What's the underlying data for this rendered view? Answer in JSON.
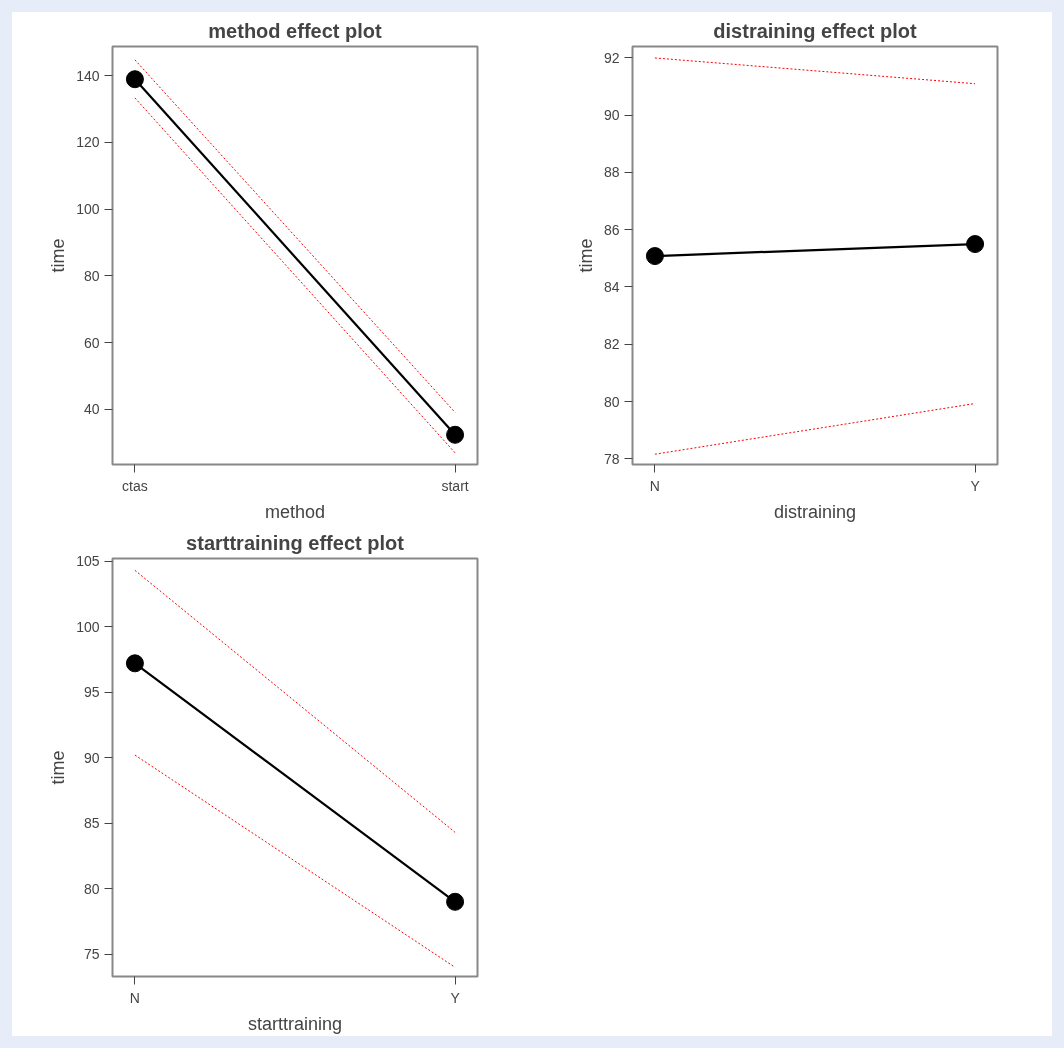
{
  "chart_data": [
    {
      "type": "line",
      "title": "method effect plot",
      "xlabel": "method",
      "ylabel": "time",
      "categories": [
        "ctas",
        "start"
      ],
      "ylim": [
        23.5,
        148.7
      ],
      "yticks": [
        40,
        60,
        80,
        100,
        120,
        140
      ],
      "grid": false,
      "series": [
        {
          "color": "#000000",
          "values": [
            138.9,
            32.4
          ],
          "marker": "circle",
          "line_style": "solid"
        },
        {
          "color": "#ff0000",
          "values": [
            144.7,
            39.1
          ],
          "marker": "none",
          "line_style": "dashed"
        },
        {
          "color": "#ff0000",
          "values": [
            133.3,
            27.0
          ],
          "marker": "none",
          "line_style": "dashed"
        }
      ]
    },
    {
      "type": "line",
      "title": "distraining effect plot",
      "xlabel": "distraining",
      "ylabel": "time",
      "categories": [
        "N",
        "Y"
      ],
      "ylim": [
        77.8,
        92.4
      ],
      "yticks": [
        78,
        80,
        82,
        84,
        86,
        88,
        90,
        92
      ],
      "grid": false,
      "series": [
        {
          "color": "#000000",
          "values": [
            85.08,
            85.5
          ],
          "marker": "circle",
          "line_style": "solid"
        },
        {
          "color": "#ff0000",
          "values": [
            92.0,
            91.1
          ],
          "marker": "none",
          "line_style": "dashed"
        },
        {
          "color": "#ff0000",
          "values": [
            78.16,
            79.93
          ],
          "marker": "none",
          "line_style": "dashed"
        }
      ]
    },
    {
      "type": "line",
      "title": "starttraining effect plot",
      "xlabel": "starttraining",
      "ylabel": "time",
      "categories": [
        "N",
        "Y"
      ],
      "ylim": [
        73.3,
        105.2
      ],
      "yticks": [
        75,
        80,
        85,
        90,
        95,
        100,
        105
      ],
      "grid": false,
      "series": [
        {
          "color": "#000000",
          "values": [
            97.2,
            79.0
          ],
          "marker": "circle",
          "line_style": "solid"
        },
        {
          "color": "#ff0000",
          "values": [
            104.3,
            84.3
          ],
          "marker": "none",
          "line_style": "dashed"
        },
        {
          "color": "#ff0000",
          "values": [
            90.2,
            74.0
          ],
          "marker": "none",
          "line_style": "dashed"
        }
      ]
    }
  ]
}
